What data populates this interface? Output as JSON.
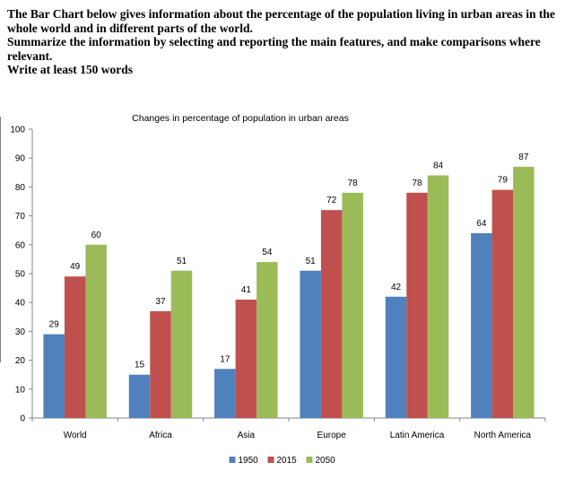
{
  "prompt": {
    "line1": "The Bar Chart below gives information about the percentage of the population living in urban areas in the whole world and in different parts of the world.",
    "line2": "Summarize the information by selecting and reporting the main features, and make comparisons where relevant.",
    "line3": "Write at least 150 words"
  },
  "chart_data": {
    "type": "bar",
    "title": "Changes in percentage of population in urban areas",
    "xlabel": "",
    "ylabel": "",
    "ylim": [
      0,
      100
    ],
    "yticks": [
      0,
      10,
      20,
      30,
      40,
      50,
      60,
      70,
      80,
      90,
      100
    ],
    "grid": false,
    "legend_position": "bottom",
    "categories": [
      "World",
      "Africa",
      "Asia",
      "Europe",
      "Latin America",
      "North America"
    ],
    "series": [
      {
        "name": "1950",
        "color": "#4f81bd",
        "values": [
          29,
          15,
          17,
          51,
          42,
          64
        ]
      },
      {
        "name": "2015",
        "color": "#c0504d",
        "values": [
          49,
          37,
          41,
          72,
          78,
          79
        ]
      },
      {
        "name": "2050",
        "color": "#9bbb59",
        "values": [
          60,
          51,
          54,
          78,
          84,
          87
        ]
      }
    ]
  }
}
